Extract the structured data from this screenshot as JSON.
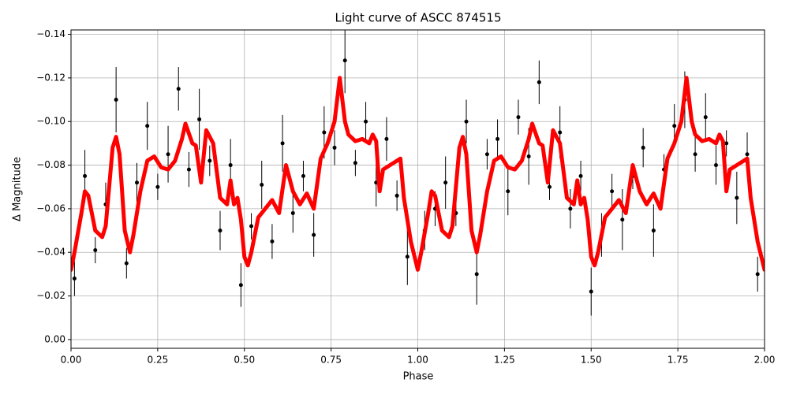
{
  "chart_data": {
    "type": "errorbar-scatter",
    "title": "Light curve of ASCC 874515",
    "xlabel": "Phase",
    "ylabel": "Δ Magnitude",
    "xlim": [
      0,
      2
    ],
    "ylim": [
      0.004,
      -0.142
    ],
    "inverted_y": true,
    "grid": true,
    "xticks": [
      {
        "value": 0,
        "label": "0.00"
      },
      0.25,
      {
        "value": 0.5,
        "label": "0.50"
      },
      0.75,
      {
        "value": 1,
        "label": "1.00"
      },
      1.25,
      {
        "value": 1.5,
        "label": "1.50"
      },
      1.75,
      {
        "value": 2,
        "label": "2.00"
      }
    ],
    "yticks": [
      {
        "value": -0.14,
        "label": "−0.14"
      },
      {
        "value": -0.12,
        "label": "−0.12"
      },
      {
        "value": -0.1,
        "label": "−0.10"
      },
      {
        "value": -0.08,
        "label": "−0.08"
      },
      {
        "value": -0.06,
        "label": "−0.06"
      },
      {
        "value": -0.04,
        "label": "−0.04"
      },
      {
        "value": -0.02,
        "label": "−0.02"
      },
      {
        "value": 0,
        "label": "0.00"
      }
    ],
    "points": {
      "color": "#000000",
      "x": [
        0.01,
        0.04,
        0.07,
        0.1,
        0.13,
        0.16,
        0.19,
        0.22,
        0.25,
        0.28,
        0.31,
        0.34,
        0.37,
        0.4,
        0.43,
        0.46,
        0.49,
        0.52,
        0.55,
        0.58,
        0.61,
        0.64,
        0.67,
        0.7,
        0.73,
        0.76,
        0.79,
        0.82,
        0.85,
        0.88,
        0.91,
        0.94,
        0.97,
        1.02,
        1.05,
        1.08,
        1.11,
        1.14,
        1.17,
        1.2,
        1.23,
        1.26,
        1.29,
        1.32,
        1.35,
        1.38,
        1.41,
        1.44,
        1.47,
        1.5,
        1.53,
        1.56,
        1.59,
        1.62,
        1.65,
        1.68,
        1.71,
        1.74,
        1.77,
        1.8,
        1.83,
        1.86,
        1.89,
        1.92,
        1.95,
        1.98
      ],
      "values": [
        -0.028,
        -0.075,
        -0.041,
        -0.062,
        -0.11,
        -0.035,
        -0.072,
        -0.098,
        -0.07,
        -0.085,
        -0.115,
        -0.078,
        -0.101,
        -0.082,
        -0.05,
        -0.08,
        -0.025,
        -0.052,
        -0.071,
        -0.045,
        -0.09,
        -0.058,
        -0.075,
        -0.048,
        -0.095,
        -0.088,
        -0.128,
        -0.081,
        -0.1,
        -0.072,
        -0.092,
        -0.066,
        -0.038,
        -0.05,
        -0.06,
        -0.072,
        -0.058,
        -0.1,
        -0.03,
        -0.085,
        -0.092,
        -0.068,
        -0.102,
        -0.084,
        -0.118,
        -0.07,
        -0.095,
        -0.06,
        -0.075,
        -0.022,
        -0.048,
        -0.068,
        -0.055,
        -0.075,
        -0.088,
        -0.05,
        -0.078,
        -0.098,
        -0.11,
        -0.085,
        -0.102,
        -0.08,
        -0.09,
        -0.065,
        -0.085,
        -0.03
      ],
      "errors": [
        0.008,
        0.012,
        0.006,
        0.01,
        0.015,
        0.007,
        0.009,
        0.011,
        0.006,
        0.013,
        0.01,
        0.008,
        0.014,
        0.007,
        0.009,
        0.012,
        0.01,
        0.006,
        0.011,
        0.008,
        0.013,
        0.009,
        0.007,
        0.01,
        0.012,
        0.008,
        0.015,
        0.006,
        0.009,
        0.011,
        0.01,
        0.007,
        0.013,
        0.009,
        0.008,
        0.012,
        0.006,
        0.01,
        0.014,
        0.007,
        0.009,
        0.011,
        0.008,
        0.013,
        0.01,
        0.006,
        0.012,
        0.009,
        0.007,
        0.011,
        0.01,
        0.008,
        0.014,
        0.006,
        0.009,
        0.012,
        0.007,
        0.01,
        0.013,
        0.008,
        0.011,
        0.009,
        0.006,
        0.012,
        0.01,
        0.008
      ]
    },
    "line": {
      "color": "#ff0000",
      "x": [
        0,
        0.01,
        0.03,
        0.04,
        0.05,
        0.06,
        0.07,
        0.09,
        0.1,
        0.12,
        0.13,
        0.14,
        0.155,
        0.17,
        0.18,
        0.2,
        0.22,
        0.24,
        0.26,
        0.28,
        0.3,
        0.32,
        0.33,
        0.35,
        0.36,
        0.375,
        0.39,
        0.41,
        0.43,
        0.45,
        0.46,
        0.47,
        0.48,
        0.49,
        0.5,
        0.51,
        0.52,
        0.54,
        0.56,
        0.58,
        0.6,
        0.62,
        0.64,
        0.66,
        0.68,
        0.7,
        0.72,
        0.74,
        0.76,
        0.775,
        0.79,
        0.8,
        0.82,
        0.84,
        0.86,
        0.87,
        0.88,
        0.89,
        0.9,
        0.92,
        0.94,
        0.95,
        0.96,
        0.98,
        1.0,
        1.01,
        1.03,
        1.04,
        1.05,
        1.06,
        1.07,
        1.09,
        1.1,
        1.12,
        1.13,
        1.14,
        1.155,
        1.17,
        1.18,
        1.2,
        1.22,
        1.24,
        1.26,
        1.28,
        1.3,
        1.32,
        1.33,
        1.35,
        1.36,
        1.375,
        1.39,
        1.41,
        1.43,
        1.45,
        1.46,
        1.47,
        1.48,
        1.49,
        1.5,
        1.51,
        1.52,
        1.54,
        1.56,
        1.58,
        1.6,
        1.62,
        1.64,
        1.66,
        1.68,
        1.7,
        1.72,
        1.74,
        1.76,
        1.775,
        1.79,
        1.8,
        1.82,
        1.84,
        1.86,
        1.87,
        1.88,
        1.89,
        1.9,
        1.92,
        1.94,
        1.95,
        1.96,
        1.98,
        2.0
      ],
      "values": [
        -0.032,
        -0.04,
        -0.058,
        -0.068,
        -0.066,
        -0.058,
        -0.05,
        -0.047,
        -0.052,
        -0.088,
        -0.093,
        -0.085,
        -0.05,
        -0.04,
        -0.048,
        -0.068,
        -0.082,
        -0.084,
        -0.079,
        -0.078,
        -0.082,
        -0.092,
        -0.099,
        -0.09,
        -0.089,
        -0.072,
        -0.096,
        -0.09,
        -0.065,
        -0.062,
        -0.073,
        -0.062,
        -0.065,
        -0.055,
        -0.038,
        -0.034,
        -0.04,
        -0.056,
        -0.06,
        -0.064,
        -0.058,
        -0.08,
        -0.068,
        -0.062,
        -0.067,
        -0.06,
        -0.083,
        -0.09,
        -0.1,
        -0.12,
        -0.1,
        -0.094,
        -0.091,
        -0.092,
        -0.09,
        -0.094,
        -0.091,
        -0.068,
        -0.078,
        -0.08,
        -0.082,
        -0.083,
        -0.065,
        -0.045,
        -0.032,
        -0.04,
        -0.058,
        -0.068,
        -0.066,
        -0.058,
        -0.05,
        -0.047,
        -0.052,
        -0.088,
        -0.093,
        -0.085,
        -0.05,
        -0.04,
        -0.048,
        -0.068,
        -0.082,
        -0.084,
        -0.079,
        -0.078,
        -0.082,
        -0.092,
        -0.099,
        -0.09,
        -0.089,
        -0.072,
        -0.096,
        -0.09,
        -0.065,
        -0.062,
        -0.073,
        -0.062,
        -0.065,
        -0.055,
        -0.038,
        -0.034,
        -0.04,
        -0.056,
        -0.06,
        -0.064,
        -0.058,
        -0.08,
        -0.068,
        -0.062,
        -0.067,
        -0.06,
        -0.083,
        -0.09,
        -0.1,
        -0.12,
        -0.1,
        -0.094,
        -0.091,
        -0.092,
        -0.09,
        -0.094,
        -0.091,
        -0.068,
        -0.078,
        -0.08,
        -0.082,
        -0.083,
        -0.065,
        -0.045,
        -0.032
      ]
    }
  }
}
